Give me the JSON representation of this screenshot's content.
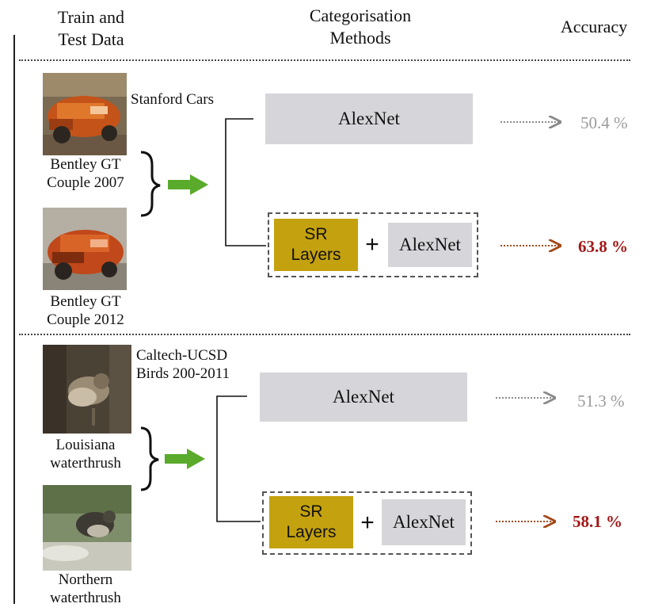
{
  "headers": {
    "train_test_line1": "Train and",
    "train_test_line2": "Test Data",
    "methods_line1": "Categorisation",
    "methods_line2": "Methods",
    "accuracy": "Accuracy"
  },
  "sections": [
    {
      "dataset_label": "Stanford Cars",
      "image1_caption_line1": "Bentley GT",
      "image1_caption_line2": "Couple 2007",
      "image2_caption_line1": "Bentley GT",
      "image2_caption_line2": "Couple 2012",
      "method_baseline": "AlexNet",
      "sr_line1": "SR",
      "sr_line2": "Layers",
      "plus": "+",
      "method_combined": "AlexNet",
      "accuracy_baseline": "50.4 %",
      "accuracy_combined": "63.8 %"
    },
    {
      "dataset_label_line1": "Caltech-UCSD",
      "dataset_label_line2": "Birds 200-2011",
      "image1_caption_line1": "Louisiana",
      "image1_caption_line2": "waterthrush",
      "image2_caption_line1": "Northern",
      "image2_caption_line2": "waterthrush",
      "method_baseline": "AlexNet",
      "sr_line1": "SR",
      "sr_line2": "Layers",
      "plus": "+",
      "method_combined": "AlexNet",
      "accuracy_baseline": "51.3 %",
      "accuracy_combined": "58.1 %"
    }
  ],
  "colors": {
    "sr_box": "#c4a10e",
    "alexnet_box": "#d6d6da",
    "green_arrow": "#5aab2c",
    "accuracy_highlight": "#a41717",
    "accuracy_muted": "#9a9a9a"
  }
}
